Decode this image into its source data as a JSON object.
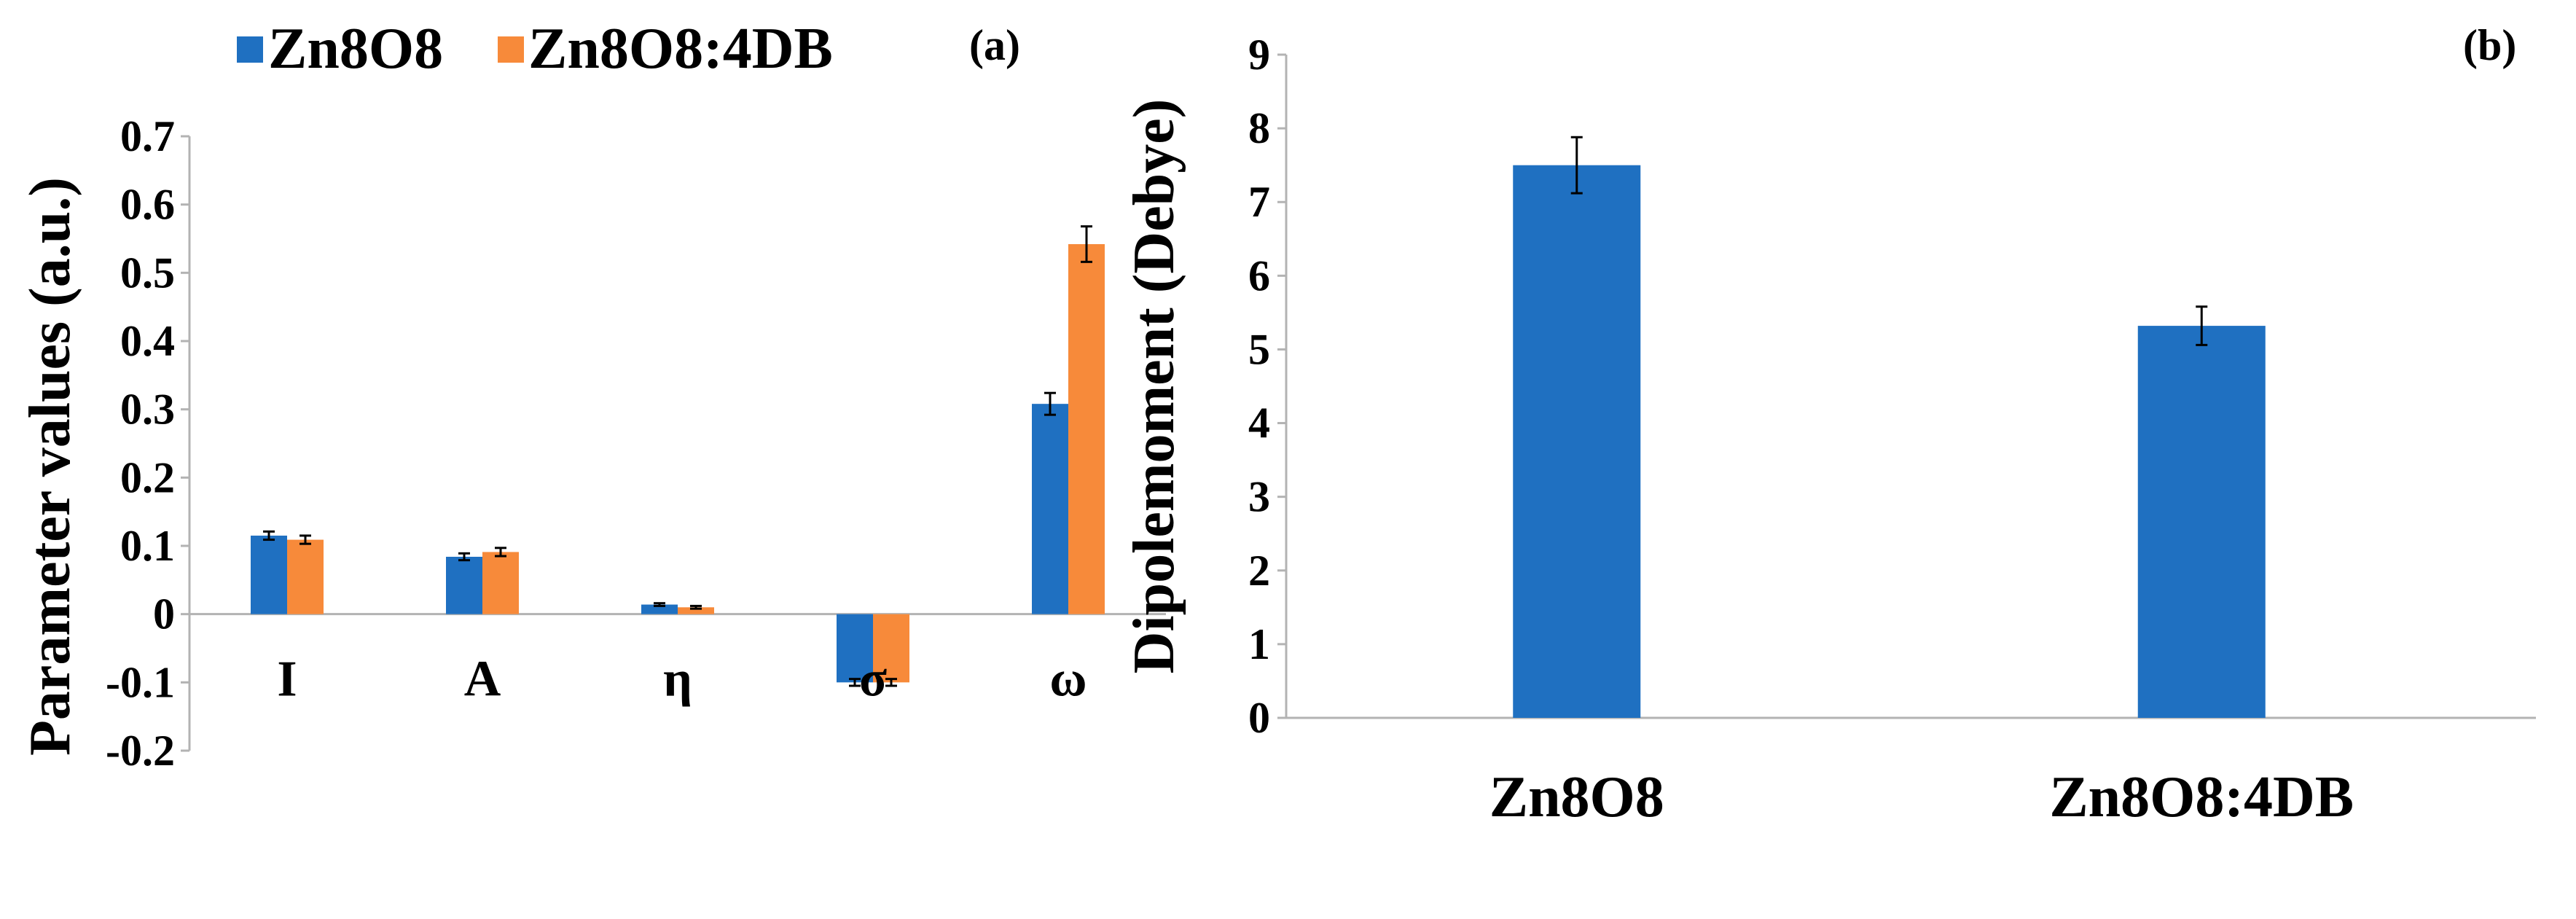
{
  "chart_data": [
    {
      "type": "bar",
      "panel_label": "(a)",
      "title": "",
      "xlabel": "",
      "ylabel": "Parameter values (a.u.)",
      "ylim": [
        -0.2,
        0.7
      ],
      "yticks": [
        -0.2,
        -0.1,
        0,
        0.1,
        0.2,
        0.3,
        0.4,
        0.5,
        0.6,
        0.7
      ],
      "ytick_labels": [
        "-0.2",
        "-0.1",
        "0",
        "0.1",
        "0.2",
        "0.3",
        "0.4",
        "0.5",
        "0.6",
        "0.7"
      ],
      "categories": [
        "I",
        "A",
        "η",
        "σ",
        "ω"
      ],
      "legend_position": "top",
      "series": [
        {
          "name": "Zn8O8",
          "color": "#1f70c1",
          "values": [
            0.115,
            0.084,
            0.014,
            -0.1,
            0.308
          ],
          "errors": [
            0.006,
            0.005,
            0.002,
            0.005,
            0.016
          ]
        },
        {
          "name": "Zn8O8:4DB",
          "color": "#f78a3a",
          "values": [
            0.109,
            0.091,
            0.01,
            -0.1,
            0.542
          ],
          "errors": [
            0.006,
            0.006,
            0.002,
            0.005,
            0.026
          ]
        }
      ]
    },
    {
      "type": "bar",
      "panel_label": "(b)",
      "title": "",
      "xlabel": "",
      "ylabel": "Dipolemoment (Debye)",
      "ylim": [
        0,
        9
      ],
      "yticks": [
        0,
        1,
        2,
        3,
        4,
        5,
        6,
        7,
        8,
        9
      ],
      "ytick_labels": [
        "0",
        "1",
        "2",
        "3",
        "4",
        "5",
        "6",
        "7",
        "8",
        "9"
      ],
      "categories": [
        "Zn8O8",
        "Zn8O8:4DB"
      ],
      "series": [
        {
          "name": "Dipolemoment",
          "color": "#1f70c1",
          "values": [
            7.5,
            5.32
          ],
          "errors": [
            0.38,
            0.26
          ]
        }
      ]
    }
  ]
}
